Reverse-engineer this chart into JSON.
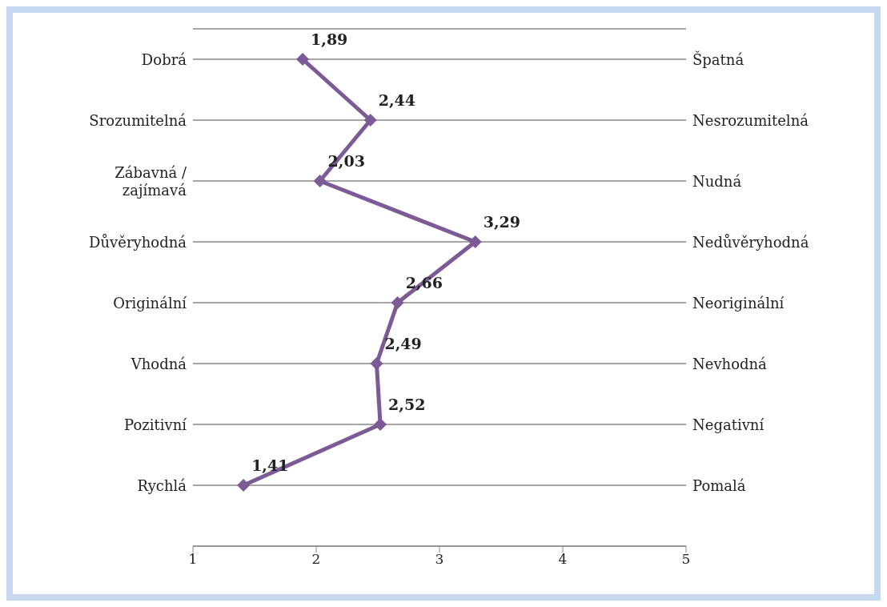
{
  "chart_data": {
    "type": "line",
    "orientation": "horizontal",
    "categories": [
      "Dobrá",
      "Srozumitelná",
      "Zábavná / zajímavá",
      "Důvěryhodná",
      "Originální",
      "Vhodná",
      "Pozitivní",
      "Rychlá"
    ],
    "y2_categories": [
      "Špatná",
      "Nesrozumitelná",
      "Nudná",
      "Nedůvěryhodná",
      "Neoriginální",
      "Nevhodná",
      "Negativní",
      "Pomalá"
    ],
    "series": [
      {
        "color": "#7b5a96",
        "values": [
          1.89,
          2.44,
          2.03,
          3.29,
          2.66,
          2.49,
          2.52,
          1.41
        ],
        "value_labels": [
          "1,89",
          "2,44",
          "2,03",
          "3,29",
          "2,66",
          "2,49",
          "2,52",
          "1,41"
        ]
      }
    ],
    "xlim": [
      1,
      5
    ],
    "xticks": [
      1,
      2,
      3,
      4,
      5
    ],
    "grid": "y",
    "marker": "diamond"
  }
}
